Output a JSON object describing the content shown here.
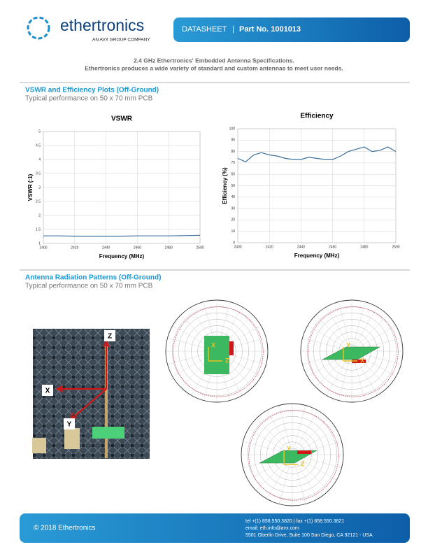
{
  "header": {
    "brand": "ethertronics",
    "tagline": "AN AVX GROUP COMPANY",
    "doc_type": "DATASHEET",
    "separator": "|",
    "part": "Part No. 1001013"
  },
  "intro": [
    "2.4 GHz Ethertronics' Embedded Antenna Specifications.",
    "Ethertronics produces a wide variety of standard and custom antennas to meet user needs."
  ],
  "sections": [
    {
      "title": "VSWR and Efficiency Plots (Off-Ground)",
      "subtitle": "Typical performance on 50 x 70 mm PCB"
    },
    {
      "title": "Antenna Radiation Patterns (Off-Ground)",
      "subtitle": "Typical performance on 50 x 70 mm PCB"
    }
  ],
  "chart_data": [
    {
      "type": "line",
      "title": "VSWR",
      "x_label": "Frequency (MHz)",
      "y_label": "VSWR (:1)",
      "x": [
        2400,
        2410,
        2420,
        2430,
        2440,
        2450,
        2460,
        2470,
        2480,
        2490,
        2500
      ],
      "series": [
        {
          "color": "#3b6f9c",
          "values": [
            1.27,
            1.27,
            1.26,
            1.26,
            1.26,
            1.26,
            1.27,
            1.27,
            1.27,
            1.28,
            1.29
          ]
        }
      ],
      "xlim": [
        2400,
        2500
      ],
      "xticks": [
        2400,
        2420,
        2440,
        2460,
        2480,
        2500
      ],
      "ylim": [
        1,
        5
      ],
      "yticks": [
        1,
        1.5,
        2,
        2.5,
        3,
        3.5,
        4,
        4.5,
        5
      ],
      "grid": true
    },
    {
      "type": "line",
      "title": "Efficiency",
      "x_label": "Frequency (MHz)",
      "y_label": "Efficiency (%)",
      "x": [
        2400,
        2405,
        2410,
        2415,
        2420,
        2425,
        2430,
        2435,
        2440,
        2445,
        2450,
        2455,
        2460,
        2465,
        2470,
        2475,
        2480,
        2485,
        2490,
        2495,
        2500
      ],
      "series": [
        {
          "color": "#3b6f9c",
          "values": [
            74,
            71,
            77,
            79,
            77,
            76,
            74,
            73,
            73,
            75,
            74,
            73,
            73,
            76,
            80,
            82,
            84,
            80,
            81,
            84,
            80
          ]
        }
      ],
      "xlim": [
        2400,
        2500
      ],
      "xticks": [
        2400,
        2420,
        2440,
        2460,
        2480,
        2500
      ],
      "ylim": [
        0,
        100
      ],
      "yticks": [
        0,
        10,
        20,
        30,
        40,
        50,
        60,
        70,
        80,
        90,
        100
      ],
      "grid": true
    }
  ],
  "photo_labels": [
    "Z",
    "X",
    "Y"
  ],
  "pattern_labels": [
    [
      "X",
      "Z"
    ],
    [
      "Y",
      "X"
    ],
    [
      "Y",
      "Z"
    ]
  ],
  "footer": {
    "copyright": "© 2018 Ethertronics",
    "contact": [
      "tel +(1) 858.550.3820  |  fax +(1) 858.550.3821",
      "email: eth.info@avx.com",
      "5501 Oberlin Drive, Suite 100 San Diego, CA 92121 - USA"
    ]
  }
}
